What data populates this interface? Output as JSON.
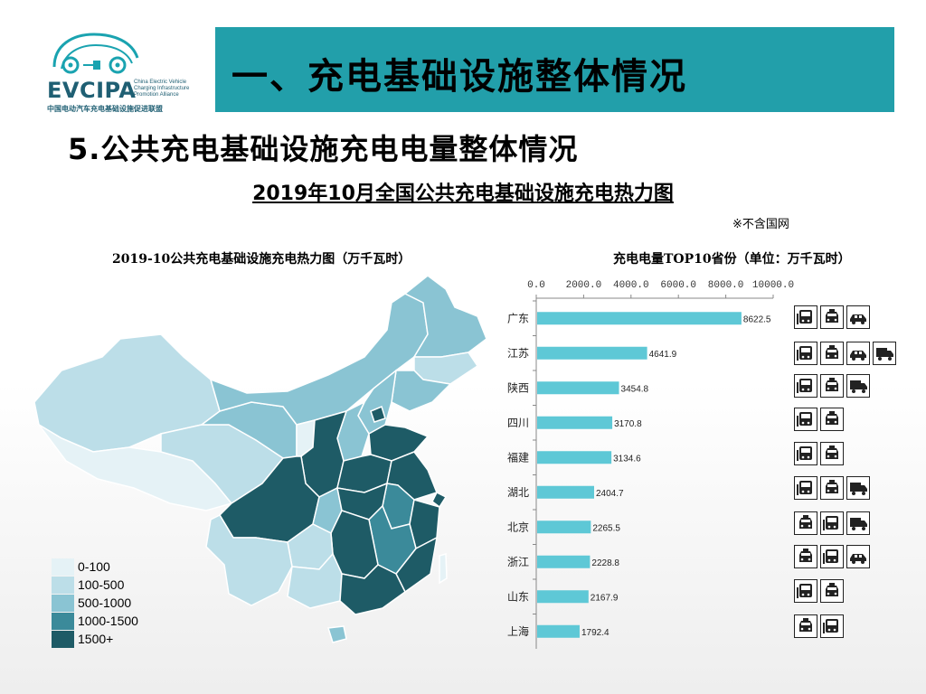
{
  "logo": {
    "name": "EVCIPA",
    "english": "China Electric Vehicle Charging Infrastructure Promotion Alliance",
    "chinese": "中国电动汽车充电基础设施促进联盟"
  },
  "header": {
    "title": "一、充电基础设施整体情况"
  },
  "subtitle": "5.公共充电基础设施充电电量整体情况",
  "section_title": "2019年10月全国公共充电基础设施充电热力图",
  "note": "※不含国网",
  "map": {
    "title": "2019-10公共充电基础设施充电热力图（万千瓦时）",
    "legend": [
      {
        "label": "0-100",
        "color": "#e5f2f6"
      },
      {
        "label": "100-500",
        "color": "#bcdee8"
      },
      {
        "label": "500-1000",
        "color": "#8ac4d3"
      },
      {
        "label": "1000-1500",
        "color": "#3b8a9a"
      },
      {
        "label": "1500+",
        "color": "#1e5b66"
      }
    ]
  },
  "chart_data": {
    "type": "bar",
    "orientation": "horizontal",
    "title": "充电电量TOP10省份（单位：万千瓦时）",
    "categories": [
      "广东",
      "江苏",
      "陕西",
      "四川",
      "福建",
      "湖北",
      "北京",
      "浙江",
      "山东",
      "上海"
    ],
    "values": [
      8622.5,
      4641.9,
      3454.8,
      3170.8,
      3134.6,
      2404.7,
      2265.5,
      2228.8,
      2167.9,
      1792.4
    ],
    "value_labels": [
      "8622.5",
      "4641.9",
      "3454.8",
      "3170.8",
      "3134.6",
      "2404.7",
      "2265.5",
      "2228.8",
      "2167.9",
      "1792.4"
    ],
    "x_ticks": [
      "0.0",
      "2000.0",
      "4000.0",
      "6000.0",
      "8000.0",
      "10000.0"
    ],
    "xlim": [
      0,
      10000
    ],
    "axis_position": "top",
    "bar_color": "#5ec8d6",
    "grid": false
  },
  "icon_rows": [
    [
      "bus-icon",
      "taxi-icon",
      "car-icon"
    ],
    [
      "bus-icon",
      "taxi-icon",
      "car-icon",
      "truck-icon"
    ],
    [
      "bus-icon",
      "taxi-icon",
      "truck-icon"
    ],
    [
      "bus-icon",
      "taxi-icon"
    ],
    [
      "bus-icon",
      "taxi-icon"
    ],
    [
      "bus-icon",
      "taxi-icon",
      "truck-icon"
    ],
    [
      "taxi-icon",
      "bus-icon",
      "truck-icon"
    ],
    [
      "taxi-icon",
      "bus-icon",
      "car-icon"
    ],
    [
      "bus-icon",
      "taxi-icon"
    ],
    [
      "taxi-icon",
      "bus-icon"
    ]
  ]
}
